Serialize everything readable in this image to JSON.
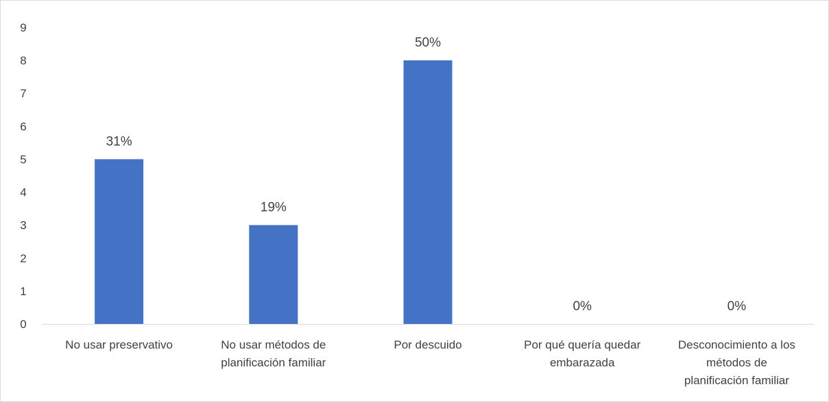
{
  "chart_data": {
    "type": "bar",
    "categories": [
      "No usar preservativo",
      "No usar métodos de planificación familiar",
      "Por descuido",
      "Por qué quería quedar embarazada",
      "Desconocimiento a los métodos de planificación familiar"
    ],
    "category_lines": [
      [
        "No usar preservativo"
      ],
      [
        "No usar métodos de",
        "planificación familiar"
      ],
      [
        "Por descuido"
      ],
      [
        "Por qué quería quedar",
        "embarazada"
      ],
      [
        "Desconocimiento a los",
        "métodos de",
        "planificación familiar"
      ]
    ],
    "values": [
      5,
      3,
      8,
      0,
      0
    ],
    "data_labels": [
      "31%",
      "19%",
      "50%",
      "0%",
      "0%"
    ],
    "title": "",
    "xlabel": "",
    "ylabel": "",
    "ylim": [
      0,
      9
    ],
    "yticks": [
      "0",
      "1",
      "2",
      "3",
      "4",
      "5",
      "6",
      "7",
      "8",
      "9"
    ],
    "grid": false,
    "legend": "none",
    "bar_color": "#4472C4",
    "axis_color": "#d9d9d9",
    "text_color": "#404040"
  }
}
